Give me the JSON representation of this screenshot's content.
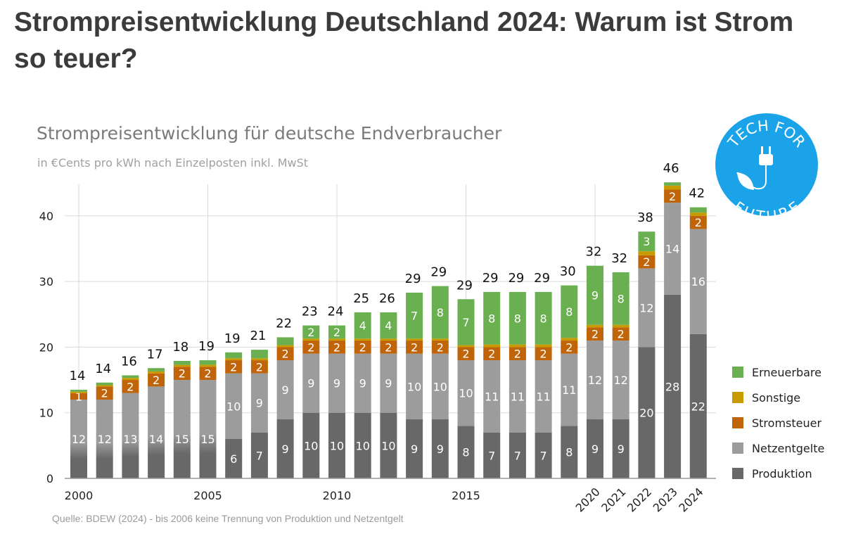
{
  "page": {
    "title": "Strompreisentwicklung Deutschland 2024: Warum ist Strom so teuer?"
  },
  "logo": {
    "text_top": "TECH FOR",
    "text_bottom": "FUTURE",
    "color": "#1aa3e8"
  },
  "chart_data": {
    "type": "bar",
    "stacked": true,
    "title": "Strompreisentwicklung für deutsche Endverbraucher",
    "subtitle": "in €Cents pro kWh nach Einzelposten inkl. MwSt",
    "source": "Quelle: BDEW (2024) - bis 2006 keine Trennung von Produktion und Netzentgelt",
    "categories": [
      "2000",
      "2001",
      "2002",
      "2003",
      "2004",
      "2005",
      "2006",
      "2007",
      "2008",
      "2009",
      "2010",
      "2011",
      "2012",
      "2013",
      "2014",
      "2015",
      "2016",
      "2017",
      "2018",
      "2019",
      "2020",
      "2021",
      "2022",
      "2023",
      "2024"
    ],
    "x_tick_labels": [
      "2000",
      "2005",
      "2010",
      "2015",
      "2020",
      "2021",
      "2022",
      "2023",
      "2024"
    ],
    "y_ticks": [
      0,
      10,
      20,
      30,
      40
    ],
    "ylim": [
      0,
      46
    ],
    "grid": true,
    "legend": "right",
    "totals": [
      14,
      14,
      16,
      17,
      18,
      19,
      19,
      21,
      22,
      23,
      24,
      25,
      26,
      29,
      29,
      29,
      29,
      29,
      29,
      30,
      32,
      32,
      38,
      46,
      42
    ],
    "series": [
      {
        "name": "Produktion",
        "color": "#686868",
        "values": [
          0,
          0,
          0,
          0,
          0,
          0,
          6,
          7,
          9,
          10,
          10,
          10,
          10,
          9,
          9,
          8,
          7,
          7,
          7,
          8,
          9,
          9,
          20,
          28,
          22
        ]
      },
      {
        "name": "Netzentgelte",
        "color": "#9c9c9c",
        "values": [
          12,
          12,
          13,
          14,
          15,
          15,
          10,
          9,
          9,
          9,
          9,
          9,
          9,
          10,
          10,
          10,
          11,
          11,
          11,
          11,
          12,
          12,
          12,
          14,
          16
        ]
      },
      {
        "name": "Stromsteuer",
        "color": "#c0640a",
        "values": [
          1,
          2,
          2,
          2,
          2,
          2,
          2,
          2,
          2,
          2,
          2,
          2,
          2,
          2,
          2,
          2,
          2,
          2,
          2,
          2,
          2,
          2,
          2,
          2,
          2
        ]
      },
      {
        "name": "Sonstige",
        "color": "#c89a00",
        "values": [
          0.2,
          0.2,
          0.3,
          0.3,
          0.3,
          0.3,
          0.3,
          0.3,
          0.3,
          0.3,
          0.3,
          0.3,
          0.3,
          0.3,
          0.3,
          0.3,
          0.4,
          0.4,
          0.4,
          0.4,
          0.4,
          0.4,
          0.6,
          0.6,
          0.5
        ]
      },
      {
        "name": "Erneuerbare",
        "color": "#6aaf50",
        "values": [
          0.3,
          0.4,
          0.4,
          0.5,
          0.6,
          0.7,
          0.9,
          1.3,
          1.2,
          2,
          2,
          4,
          4,
          7,
          8,
          7,
          8,
          8,
          8,
          8,
          9,
          8,
          3,
          0.5,
          0.8
        ]
      }
    ]
  }
}
